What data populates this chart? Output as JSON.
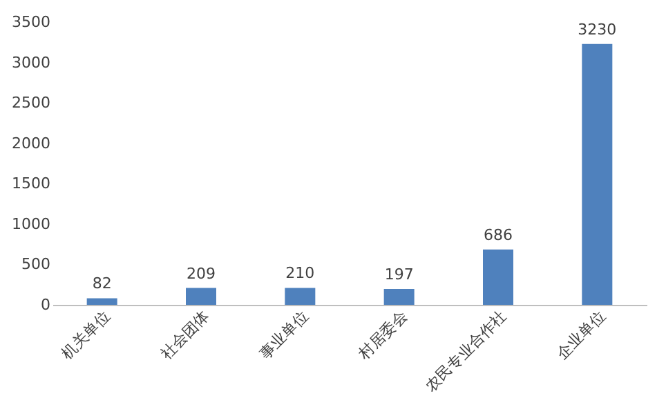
{
  "chart_data": {
    "type": "bar",
    "categories": [
      "机关单位",
      "社会团体",
      "事业单位",
      "村居委会",
      "农民专业合作社",
      "企业单位"
    ],
    "values": [
      82,
      209,
      210,
      197,
      686,
      3230
    ],
    "color": "#4f81bd",
    "ylim": [
      0,
      3500
    ],
    "yticks": [
      0,
      500,
      1000,
      1500,
      2000,
      2500,
      3000,
      3500
    ],
    "grid": false,
    "data_labels": true
  }
}
